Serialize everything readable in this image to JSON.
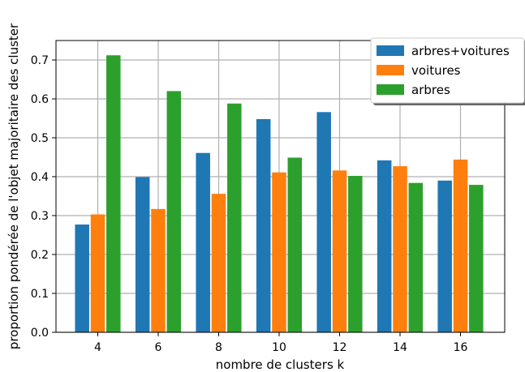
{
  "chart_data": {
    "type": "bar",
    "xlabel": "nombre de clusters k",
    "ylabel": "proportion pondérée de l'objet majoritaire des cluster",
    "categories": [
      "4",
      "6",
      "8",
      "10",
      "12",
      "14",
      "16"
    ],
    "ylim": [
      0,
      0.75
    ],
    "yticks": [
      "0.0",
      "0.1",
      "0.2",
      "0.3",
      "0.4",
      "0.5",
      "0.6",
      "0.7"
    ],
    "grid": true,
    "legend_position": "top-right",
    "series": [
      {
        "name": "arbres+voitures",
        "color": "#1f77b4",
        "values": [
          0.277,
          0.399,
          0.461,
          0.548,
          0.566,
          0.442,
          0.39
        ]
      },
      {
        "name": "voitures",
        "color": "#ff7f0e",
        "values": [
          0.303,
          0.317,
          0.356,
          0.411,
          0.416,
          0.427,
          0.444
        ]
      },
      {
        "name": "arbres",
        "color": "#2ca02c",
        "values": [
          0.712,
          0.62,
          0.588,
          0.449,
          0.402,
          0.384,
          0.379
        ]
      }
    ]
  }
}
